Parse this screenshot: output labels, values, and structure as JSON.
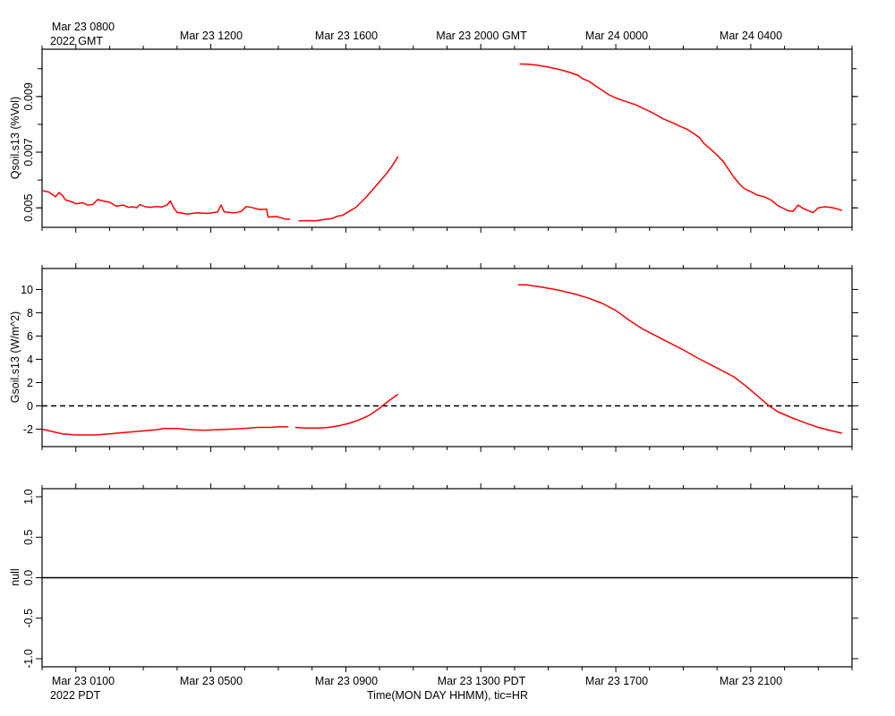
{
  "top_axis": {
    "labels": [
      "Mar 23 0800",
      "Mar 23 1200",
      "Mar 23 1600",
      "Mar 23 2000 GMT",
      "Mar 24 0000",
      "Mar 24 0400"
    ],
    "year_label": "2022 GMT"
  },
  "bottom_axis": {
    "labels": [
      "Mar 23 0100",
      "Mar 23 0500",
      "Mar 23 0900",
      "Mar 23 1300 PDT",
      "Mar 23 1700",
      "Mar 23 2100"
    ],
    "year_label": "2022 PDT",
    "title": "Time(MON DAY HHMM), tic=HR"
  },
  "colors": {
    "series": "#ff0000",
    "axis": "#000000"
  },
  "chart_data": [
    {
      "type": "line",
      "ylabel": "Qsoil.s13 (%Vol)",
      "xlabel": "",
      "x_units": "hours since Mar 23 0000 PDT",
      "xlim": [
        0,
        24
      ],
      "ylim": [
        0.0043,
        0.0107
      ],
      "y_ticks": [
        "0.005",
        "0.007",
        "0.009"
      ],
      "y_tick_values": [
        0.005,
        0.007,
        0.009
      ],
      "y_minor_ticks": [
        0.005,
        0.006,
        0.007,
        0.008,
        0.009,
        0.01
      ],
      "grid": false,
      "series": [
        {
          "segments": [
            [
              [
                0.0,
                0.00562
              ],
              [
                0.2,
                0.00557
              ],
              [
                0.3,
                0.00548
              ],
              [
                0.4,
                0.0054
              ],
              [
                0.5,
                0.00555
              ],
              [
                0.6,
                0.00545
              ],
              [
                0.7,
                0.00528
              ],
              [
                0.85,
                0.00523
              ],
              [
                1.0,
                0.00515
              ],
              [
                1.2,
                0.00518
              ],
              [
                1.35,
                0.0051
              ],
              [
                1.5,
                0.00512
              ],
              [
                1.65,
                0.0053
              ],
              [
                1.8,
                0.00525
              ],
              [
                2.0,
                0.0052
              ],
              [
                2.2,
                0.00506
              ],
              [
                2.3,
                0.00508
              ],
              [
                2.4,
                0.0051
              ],
              [
                2.55,
                0.00502
              ],
              [
                2.7,
                0.00504
              ],
              [
                2.8,
                0.005
              ],
              [
                2.9,
                0.00512
              ],
              [
                3.05,
                0.00504
              ],
              [
                3.2,
                0.00502
              ],
              [
                3.4,
                0.00505
              ],
              [
                3.55,
                0.00503
              ],
              [
                3.7,
                0.0051
              ],
              [
                3.8,
                0.00525
              ],
              [
                3.9,
                0.005
              ],
              [
                4.0,
                0.00484
              ],
              [
                4.3,
                0.00478
              ],
              [
                4.6,
                0.00482
              ],
              [
                4.9,
                0.0048
              ],
              [
                5.2,
                0.00485
              ],
              [
                5.3,
                0.0051
              ],
              [
                5.4,
                0.00485
              ],
              [
                5.7,
                0.00482
              ],
              [
                5.9,
                0.00487
              ],
              [
                6.05,
                0.00505
              ],
              [
                6.25,
                0.005
              ],
              [
                6.45,
                0.00494
              ],
              [
                6.65,
                0.00495
              ],
              [
                6.7,
                0.00467
              ],
              [
                6.95,
                0.00469
              ],
              [
                7.2,
                0.0046
              ],
              [
                7.35,
                0.00459
              ]
            ],
            [
              [
                7.6,
                0.00453
              ],
              [
                7.9,
                0.00454
              ],
              [
                8.1,
                0.00453
              ],
              [
                8.35,
                0.00458
              ],
              [
                8.6,
                0.00462
              ],
              [
                8.75,
                0.0047
              ],
              [
                8.9,
                0.00473
              ],
              [
                9.05,
                0.00484
              ],
              [
                9.3,
                0.00502
              ],
              [
                9.6,
                0.00538
              ],
              [
                9.9,
                0.0058
              ],
              [
                10.2,
                0.00622
              ],
              [
                10.4,
                0.00656
              ],
              [
                10.55,
                0.00685
              ]
            ],
            [
              [
                14.15,
                0.01017
              ],
              [
                14.4,
                0.01016
              ],
              [
                14.7,
                0.01012
              ],
              [
                15.0,
                0.01006
              ],
              [
                15.3,
                0.00998
              ],
              [
                15.6,
                0.00988
              ],
              [
                15.9,
                0.00975
              ],
              [
                16.0,
                0.00965
              ],
              [
                16.2,
                0.00955
              ],
              [
                16.4,
                0.00938
              ],
              [
                16.6,
                0.00922
              ],
              [
                16.8,
                0.00906
              ],
              [
                17.0,
                0.00895
              ],
              [
                17.2,
                0.00886
              ],
              [
                17.4,
                0.00878
              ],
              [
                17.6,
                0.0087
              ],
              [
                17.8,
                0.00858
              ],
              [
                18.0,
                0.00847
              ],
              [
                18.2,
                0.00834
              ],
              [
                18.4,
                0.0082
              ],
              [
                18.7,
                0.00805
              ],
              [
                18.9,
                0.00793
              ],
              [
                19.1,
                0.00783
              ],
              [
                19.3,
                0.00768
              ],
              [
                19.5,
                0.0075
              ],
              [
                19.6,
                0.00733
              ],
              [
                19.8,
                0.00712
              ],
              [
                20.0,
                0.0069
              ],
              [
                20.2,
                0.00664
              ],
              [
                20.35,
                0.00636
              ],
              [
                20.5,
                0.0061
              ],
              [
                20.65,
                0.00588
              ],
              [
                20.8,
                0.0057
              ],
              [
                21.0,
                0.00558
              ],
              [
                21.2,
                0.00545
              ],
              [
                21.4,
                0.0054
              ],
              [
                21.6,
                0.00528
              ],
              [
                21.8,
                0.00508
              ],
              [
                21.95,
                0.00499
              ],
              [
                22.1,
                0.0049
              ],
              [
                22.25,
                0.00487
              ],
              [
                22.4,
                0.0051
              ],
              [
                22.55,
                0.00498
              ],
              [
                22.7,
                0.0049
              ],
              [
                22.85,
                0.00483
              ],
              [
                23.0,
                0.005
              ],
              [
                23.2,
                0.00504
              ],
              [
                23.4,
                0.00501
              ],
              [
                23.6,
                0.00495
              ],
              [
                23.7,
                0.0049
              ]
            ]
          ]
        }
      ]
    },
    {
      "type": "line",
      "ylabel": "Gsoil.s13 (W/m^2)",
      "xlabel": "",
      "x_units": "hours since Mar 23 0000 PDT",
      "xlim": [
        0,
        24
      ],
      "ylim": [
        -3.5,
        11.8
      ],
      "y_ticks": [
        "-2",
        "0",
        "2",
        "4",
        "6",
        "8",
        "10"
      ],
      "y_tick_values": [
        -2,
        0,
        2,
        4,
        6,
        8,
        10
      ],
      "reference_line": {
        "y": 0,
        "style": "dashed"
      },
      "grid": false,
      "series": [
        {
          "segments": [
            [
              [
                0.0,
                -2.0
              ],
              [
                0.3,
                -2.2
              ],
              [
                0.6,
                -2.4
              ],
              [
                1.0,
                -2.5
              ],
              [
                1.6,
                -2.5
              ],
              [
                2.0,
                -2.4
              ],
              [
                2.6,
                -2.25
              ],
              [
                3.0,
                -2.15
              ],
              [
                3.4,
                -2.05
              ],
              [
                3.6,
                -1.95
              ],
              [
                4.0,
                -1.95
              ],
              [
                4.4,
                -2.05
              ],
              [
                4.8,
                -2.1
              ],
              [
                5.2,
                -2.05
              ],
              [
                5.6,
                -2.0
              ],
              [
                6.0,
                -1.95
              ],
              [
                6.4,
                -1.85
              ],
              [
                6.8,
                -1.85
              ],
              [
                7.0,
                -1.8
              ],
              [
                7.3,
                -1.8
              ]
            ],
            [
              [
                7.5,
                -1.85
              ],
              [
                7.8,
                -1.9
              ],
              [
                8.2,
                -1.9
              ],
              [
                8.5,
                -1.85
              ],
              [
                8.8,
                -1.7
              ],
              [
                9.1,
                -1.5
              ],
              [
                9.4,
                -1.2
              ],
              [
                9.7,
                -0.8
              ],
              [
                10.0,
                -0.2
              ],
              [
                10.3,
                0.5
              ],
              [
                10.55,
                1.0
              ]
            ],
            [
              [
                14.1,
                10.4
              ],
              [
                14.35,
                10.4
              ],
              [
                14.8,
                10.2
              ],
              [
                15.3,
                9.95
              ],
              [
                15.8,
                9.6
              ],
              [
                16.2,
                9.25
              ],
              [
                16.6,
                8.8
              ],
              [
                17.0,
                8.2
              ],
              [
                17.4,
                7.35
              ],
              [
                17.8,
                6.6
              ],
              [
                18.4,
                5.7
              ],
              [
                19.0,
                4.8
              ],
              [
                19.5,
                4.0
              ],
              [
                20.0,
                3.25
              ],
              [
                20.5,
                2.5
              ],
              [
                20.9,
                1.6
              ],
              [
                21.3,
                0.6
              ],
              [
                21.5,
                0.1
              ],
              [
                21.8,
                -0.5
              ],
              [
                22.2,
                -1.0
              ],
              [
                22.6,
                -1.45
              ],
              [
                23.0,
                -1.85
              ],
              [
                23.4,
                -2.15
              ],
              [
                23.7,
                -2.35
              ]
            ]
          ]
        }
      ]
    },
    {
      "type": "line",
      "ylabel": "null",
      "xlabel": "",
      "x_units": "hours since Mar 23 0000 PDT",
      "xlim": [
        0,
        24
      ],
      "ylim": [
        -1.1,
        1.1
      ],
      "y_ticks": [
        "-1.0",
        "-0.5",
        "0.0",
        "0.5",
        "1.0"
      ],
      "y_tick_values": [
        -1.0,
        -0.5,
        0.0,
        0.5,
        1.0
      ],
      "grid": false,
      "series": [
        {
          "segments": [
            [
              [
                0,
                0
              ],
              [
                24,
                0
              ]
            ]
          ]
        }
      ]
    }
  ]
}
